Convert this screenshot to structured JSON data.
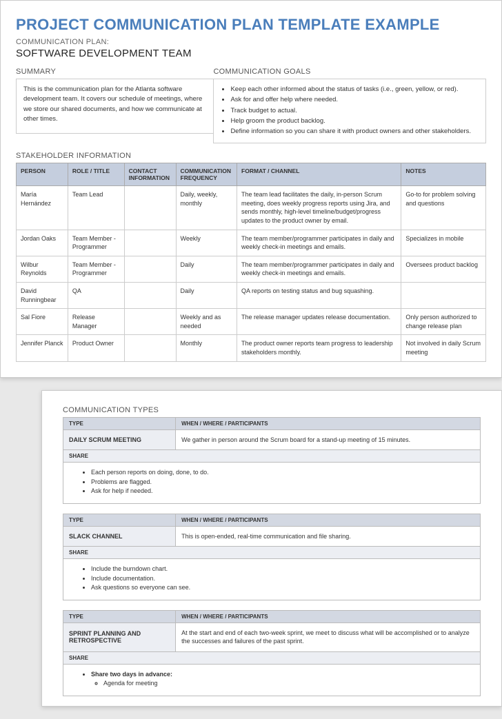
{
  "colors": {
    "title": "#4a7ebb",
    "header_bg": "#c5cede",
    "subheader_bg": "#d3d8e2",
    "light_bg": "#eceef3",
    "border": "#cccccc",
    "page_bg": "#ffffff",
    "body_bg": "#e8e8e8"
  },
  "title": "PROJECT COMMUNICATION PLAN TEMPLATE EXAMPLE",
  "plan_label": "COMMUNICATION PLAN:",
  "team_name": "SOFTWARE DEVELOPMENT TEAM",
  "summary": {
    "heading": "SUMMARY",
    "text": "This is the communication plan for the Atlanta software development team. It covers our schedule of meetings, where we store our shared documents, and how we communicate at other times."
  },
  "goals": {
    "heading": "COMMUNICATION GOALS",
    "items": [
      "Keep each other informed about the status of tasks (i.e., green, yellow, or red).",
      "Ask for and offer help where needed.",
      "Track budget to actual.",
      "Help groom the product backlog.",
      "Define information so you can share it with product owners and other stakeholders."
    ]
  },
  "stakeholder": {
    "heading": "STAKEHOLDER INFORMATION",
    "columns": [
      "PERSON",
      "ROLE / TITLE",
      "CONTACT INFORMATION",
      "COMMUNICATION FREQUENCY",
      "FORMAT / CHANNEL",
      "NOTES"
    ],
    "rows": [
      {
        "person": "María Hernández",
        "role": "Team Lead",
        "contact": "",
        "freq": "Daily, weekly, monthly",
        "format": "The team lead facilitates the daily, in-person Scrum meeting, does weekly progress reports using Jira, and sends monthly, high-level timeline/budget/progress updates to the product owner by email.",
        "notes": "Go-to for problem solving and questions"
      },
      {
        "person": "Jordan Oaks",
        "role": "Team Member - Programmer",
        "contact": "",
        "freq": "Weekly",
        "format": "The team member/programmer participates in daily and weekly check-in meetings and emails.",
        "notes": "Specializes in mobile"
      },
      {
        "person": "Wilbur Reynolds",
        "role": "Team Member - Programmer",
        "contact": "",
        "freq": "Daily",
        "format": "The team member/programmer participates in daily and weekly check-in meetings and emails.",
        "notes": "Oversees product backlog"
      },
      {
        "person": "David Runningbear",
        "role": "QA",
        "contact": "",
        "freq": "Daily",
        "format": "QA reports on testing status and bug squashing.",
        "notes": ""
      },
      {
        "person": "Sal Fiore",
        "role": "Release Manager",
        "contact": "",
        "freq": "Weekly and as needed",
        "format": "The release manager updates release documentation.",
        "notes": "Only person authorized to change release plan"
      },
      {
        "person": "Jennifer Planck",
        "role": "Product Owner",
        "contact": "",
        "freq": "Monthly",
        "format": "The product owner reports team progress to leadership stakeholders monthly.",
        "notes": "Not involved in daily Scrum meeting"
      }
    ]
  },
  "comm_types": {
    "heading": "COMMUNICATION TYPES",
    "type_label": "TYPE",
    "when_label": "WHEN / WHERE / PARTICIPANTS",
    "share_label": "SHARE",
    "blocks": [
      {
        "type": "DAILY SCRUM MEETING",
        "when": "We gather in person around the Scrum board for a stand-up meeting of 15 minutes.",
        "share": [
          "Each person reports on doing, done, to do.",
          "Problems are flagged.",
          "Ask for help if needed."
        ]
      },
      {
        "type": "SLACK CHANNEL",
        "when": "This is open-ended, real-time communication and file sharing.",
        "share": [
          "Include the burndown chart.",
          "Include documentation.",
          "Ask questions so everyone can see."
        ]
      },
      {
        "type": "SPRINT PLANNING AND RETROSPECTIVE",
        "when": "At the start and end of each two-week sprint, we meet to discuss what will be accomplished or to analyze the successes and failures of the past sprint.",
        "share_nested": {
          "lead": "Share two days in advance:",
          "items": [
            "Agenda for meeting"
          ]
        }
      }
    ]
  }
}
